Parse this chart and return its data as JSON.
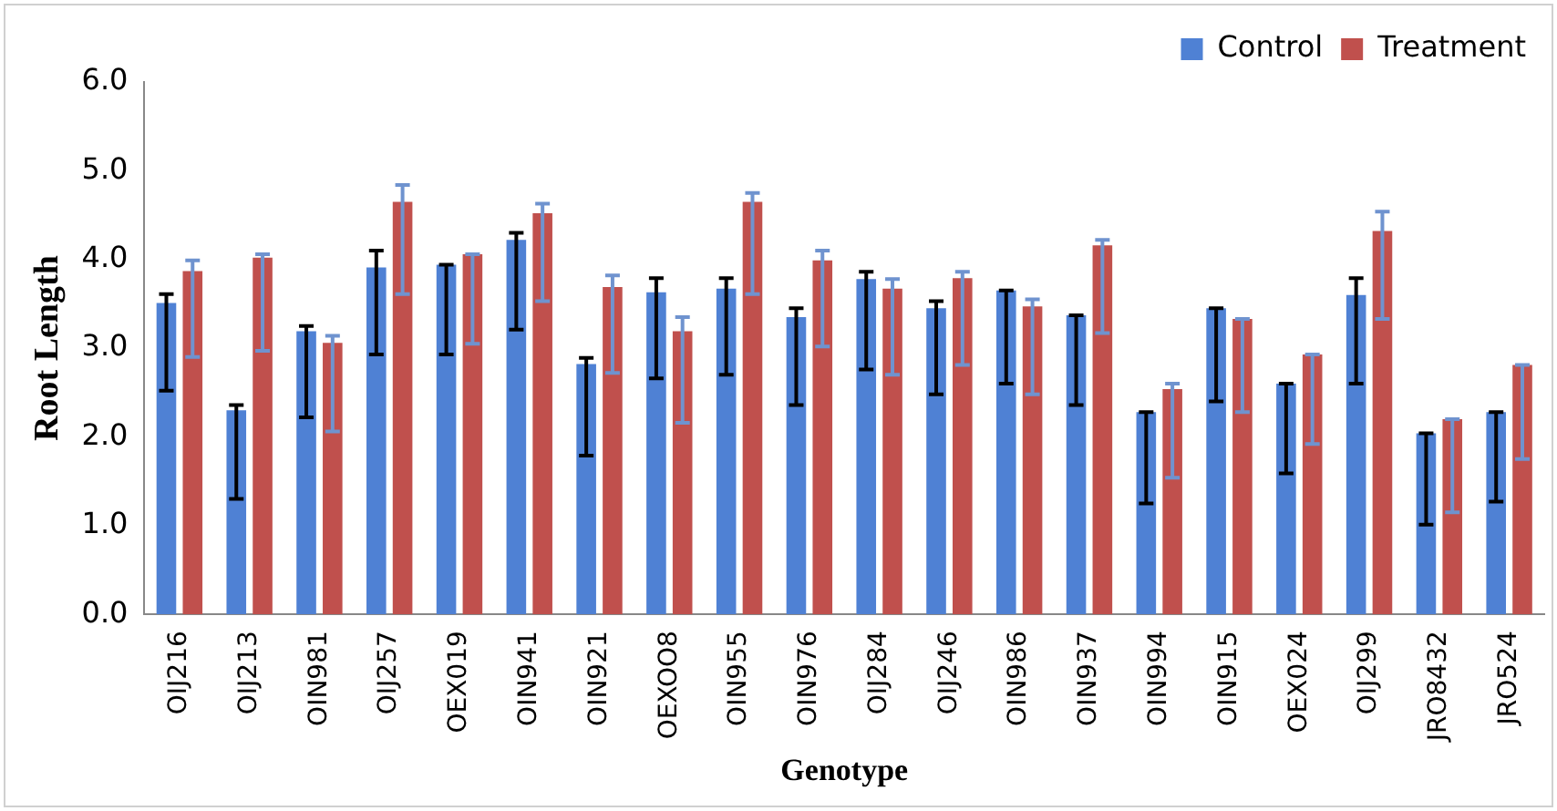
{
  "chart_data": {
    "type": "bar",
    "xlabel": "Genotype",
    "ylabel": "Root Length",
    "categories": [
      "OIJ216",
      "OIJ213",
      "OIN981",
      "OIJ257",
      "OEX019",
      "OIN941",
      "OIN921",
      "OEXOO8",
      "OIN955",
      "OIN976",
      "OIJ284",
      "OIJ246",
      "OIN986",
      "OIN937",
      "OIN994",
      "OIN915",
      "OEX024",
      "OIJ299",
      "JRO8432",
      "JRO524"
    ],
    "series": [
      {
        "name": "Control",
        "color": "#4f81d4",
        "values": [
          3.51,
          2.3,
          3.19,
          3.91,
          3.94,
          4.22,
          2.82,
          3.63,
          3.67,
          3.35,
          3.78,
          3.45,
          3.65,
          3.37,
          2.28,
          3.45,
          2.6,
          3.6,
          2.04,
          2.28
        ],
        "errors": [
          [
            2.52,
            3.61
          ],
          [
            1.3,
            2.36
          ],
          [
            2.22,
            3.25
          ],
          [
            2.93,
            4.1
          ],
          [
            2.93,
            3.94
          ],
          [
            3.21,
            4.3
          ],
          [
            1.79,
            2.89
          ],
          [
            2.66,
            3.79
          ],
          [
            2.7,
            3.79
          ],
          [
            2.36,
            3.45
          ],
          [
            2.76,
            3.86
          ],
          [
            2.48,
            3.53
          ],
          [
            2.6,
            3.65
          ],
          [
            2.36,
            3.37
          ],
          [
            1.25,
            2.28
          ],
          [
            2.4,
            3.45
          ],
          [
            1.59,
            2.6
          ],
          [
            2.6,
            3.79
          ],
          [
            1.01,
            2.04
          ],
          [
            1.27,
            2.28
          ]
        ]
      },
      {
        "name": "Treatment",
        "color": "#c0504d",
        "values": [
          3.87,
          4.02,
          3.06,
          4.65,
          4.06,
          4.52,
          3.69,
          3.19,
          4.65,
          3.99,
          3.67,
          3.79,
          3.47,
          4.16,
          2.54,
          3.33,
          2.93,
          4.32,
          2.2,
          2.81
        ],
        "errors": [
          [
            2.9,
            3.99
          ],
          [
            2.97,
            4.06
          ],
          [
            2.06,
            3.14
          ],
          [
            3.61,
            4.84
          ],
          [
            3.05,
            4.06
          ],
          [
            3.53,
            4.63
          ],
          [
            2.72,
            3.82
          ],
          [
            2.16,
            3.35
          ],
          [
            3.61,
            4.75
          ],
          [
            3.02,
            4.1
          ],
          [
            2.7,
            3.78
          ],
          [
            2.81,
            3.86
          ],
          [
            2.48,
            3.55
          ],
          [
            3.17,
            4.22
          ],
          [
            1.54,
            2.6
          ],
          [
            2.28,
            3.33
          ],
          [
            1.92,
            2.93
          ],
          [
            3.33,
            4.54
          ],
          [
            1.15,
            2.2
          ],
          [
            1.75,
            2.81
          ]
        ]
      }
    ],
    "ylim": [
      0,
      6
    ],
    "yticks": [
      {
        "value": 0,
        "label": "0.0"
      },
      {
        "value": 1,
        "label": "1.0"
      },
      {
        "value": 2,
        "label": "2.0"
      },
      {
        "value": 3,
        "label": "3.0"
      },
      {
        "value": 4,
        "label": "4.0"
      },
      {
        "value": 5,
        "label": "5.0"
      },
      {
        "value": 6,
        "label": "6.0"
      }
    ],
    "grid": false,
    "legend": "top right"
  }
}
